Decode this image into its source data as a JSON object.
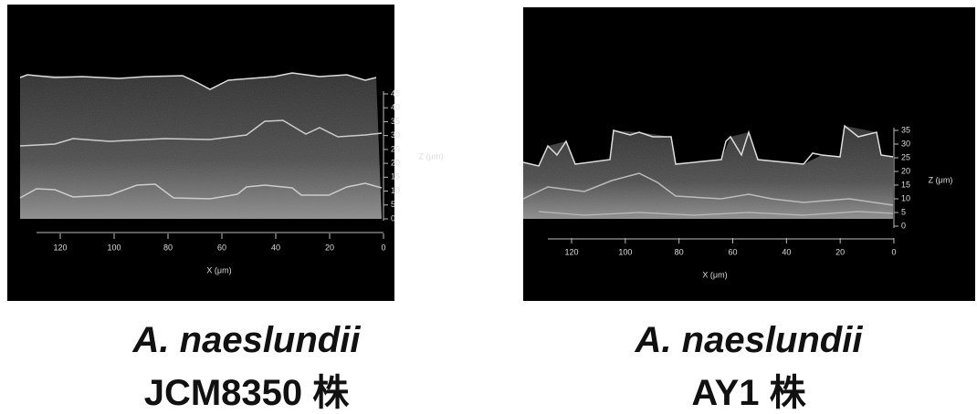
{
  "panels": [
    {
      "caption": {
        "species": "A. naeslundii",
        "strain": "JCM8350 株"
      },
      "x_axis": {
        "label": "X (μm)",
        "ticks": [
          "120",
          "100",
          "80",
          "60",
          "40",
          "20",
          "0"
        ]
      },
      "z_axis": {
        "label": "Z (μm)",
        "ticks": [
          "0",
          "5",
          "10",
          "15",
          "20",
          "25",
          "30",
          "35",
          "40",
          "45"
        ]
      }
    },
    {
      "caption": {
        "species": "A. naeslundii",
        "strain": "AY1 株"
      },
      "x_axis": {
        "label": "X (μm)",
        "ticks": [
          "120",
          "100",
          "80",
          "60",
          "40",
          "20",
          "0"
        ]
      },
      "z_axis": {
        "label": "Z (μm)",
        "ticks": [
          "0",
          "5",
          "10",
          "15",
          "20",
          "25",
          "30",
          "35"
        ]
      }
    }
  ]
}
